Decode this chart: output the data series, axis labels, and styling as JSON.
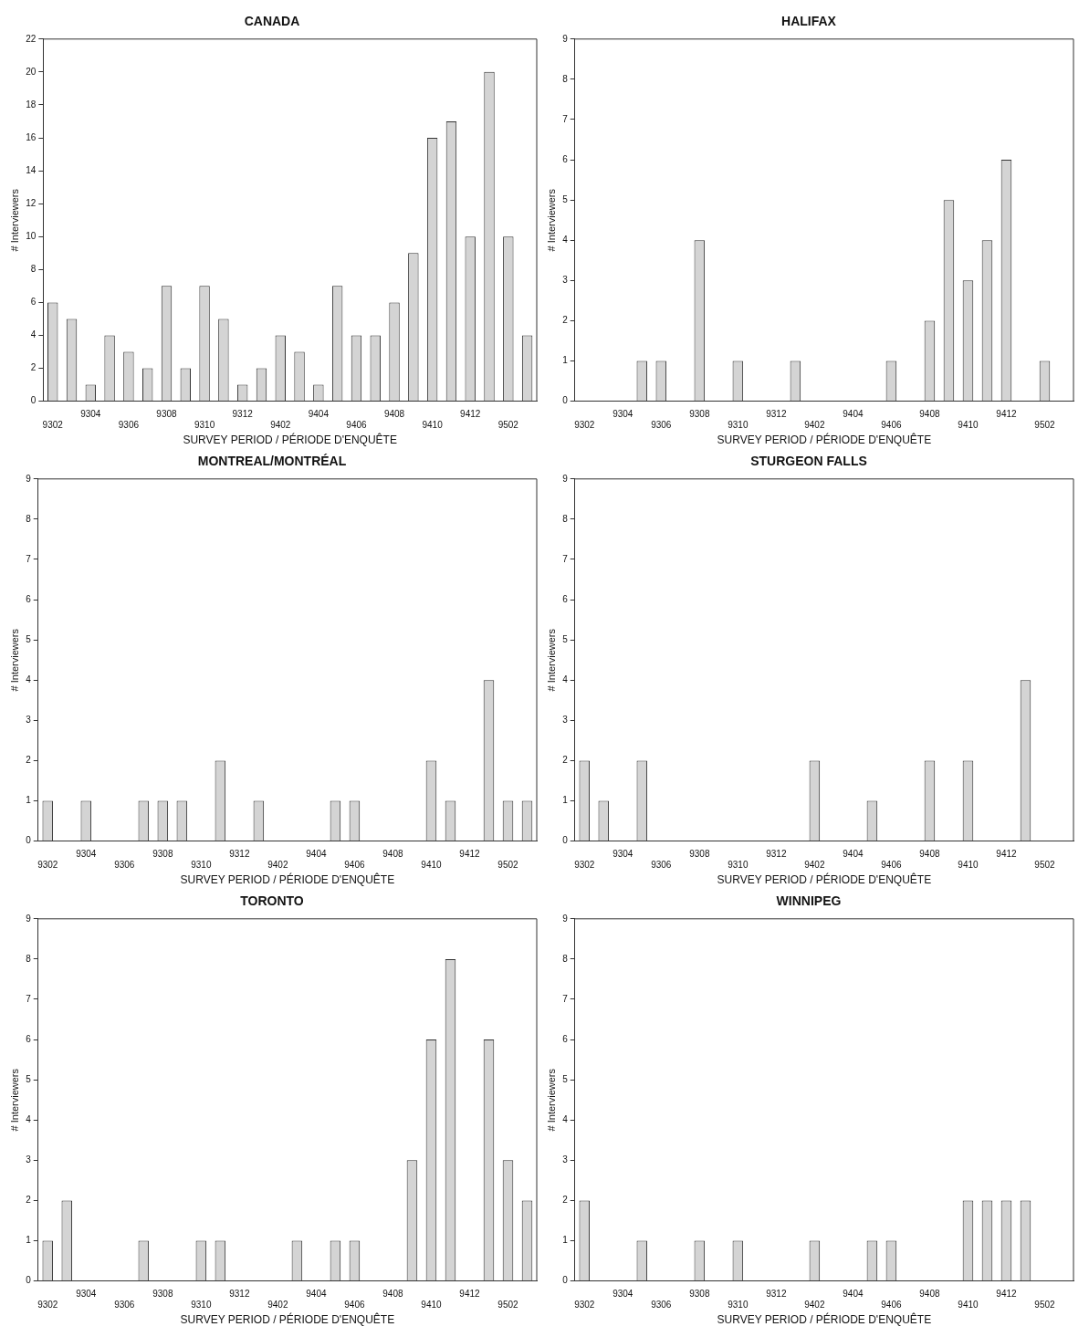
{
  "chart_data": [
    {
      "type": "bar",
      "title": "CANADA",
      "xlabel": "SURVEY PERIOD / PÉRIODE D'ENQUÊTE",
      "ylabel": "# Interviewers",
      "categories": [
        "9302",
        null,
        "9304",
        null,
        "9306",
        null,
        "9308",
        null,
        "9310",
        null,
        "9312",
        null,
        "9402",
        null,
        "9404",
        null,
        "9406",
        null,
        "9408",
        null,
        "9410",
        null,
        "9412",
        null,
        "9502",
        null
      ],
      "values": [
        6,
        5,
        1,
        4,
        3,
        2,
        7,
        2,
        7,
        5,
        1,
        2,
        4,
        3,
        1,
        7,
        4,
        4,
        6,
        9,
        16,
        17,
        10,
        20,
        10,
        4
      ],
      "color": "#d4d4d4",
      "ylim": [
        0,
        22
      ],
      "yticks": [
        0,
        2,
        4,
        6,
        8,
        10,
        12,
        14,
        16,
        18,
        20,
        22
      ]
    },
    {
      "type": "bar",
      "title": "HALIFAX",
      "xlabel": "SURVEY PERIOD / PÉRIODE D'ENQUÊTE",
      "ylabel": "# Interviewers",
      "categories": [
        "9302",
        null,
        "9304",
        null,
        "9306",
        null,
        "9308",
        null,
        "9310",
        null,
        "9312",
        null,
        "9402",
        null,
        "9404",
        null,
        "9406",
        null,
        "9408",
        null,
        "9410",
        null,
        "9412",
        null,
        "9502",
        null
      ],
      "values": [
        0,
        0,
        0,
        1,
        1,
        0,
        4,
        0,
        1,
        0,
        0,
        1,
        0,
        0,
        0,
        0,
        1,
        0,
        2,
        5,
        3,
        4,
        6,
        0,
        1,
        0
      ],
      "color": "#d4d4d4",
      "ylim": [
        0,
        9
      ],
      "yticks": [
        0,
        1,
        2,
        3,
        4,
        5,
        6,
        7,
        8,
        9
      ]
    },
    {
      "type": "bar",
      "title": "MONTREAL/MONTRÉAL",
      "xlabel": "SURVEY PERIOD / PÉRIODE D'ENQUÊTE",
      "ylabel": "# Interviewers",
      "categories": [
        "9302",
        null,
        "9304",
        null,
        "9306",
        null,
        "9308",
        null,
        "9310",
        null,
        "9312",
        null,
        "9402",
        null,
        "9404",
        null,
        "9406",
        null,
        "9408",
        null,
        "9410",
        null,
        "9412",
        null,
        "9502",
        null
      ],
      "values": [
        1,
        0,
        1,
        0,
        0,
        1,
        1,
        1,
        0,
        2,
        0,
        1,
        0,
        0,
        0,
        1,
        1,
        0,
        0,
        0,
        2,
        1,
        0,
        4,
        1,
        1
      ],
      "color": "#d4d4d4",
      "ylim": [
        0,
        9
      ],
      "yticks": [
        0,
        1,
        2,
        3,
        4,
        5,
        6,
        7,
        8,
        9
      ]
    },
    {
      "type": "bar",
      "title": "STURGEON FALLS",
      "xlabel": "SURVEY PERIOD / PÉRIODE D'ENQUÊTE",
      "ylabel": "# Interviewers",
      "categories": [
        "9302",
        null,
        "9304",
        null,
        "9306",
        null,
        "9308",
        null,
        "9310",
        null,
        "9312",
        null,
        "9402",
        null,
        "9404",
        null,
        "9406",
        null,
        "9408",
        null,
        "9410",
        null,
        "9412",
        null,
        "9502",
        null
      ],
      "values": [
        2,
        1,
        0,
        2,
        0,
        0,
        0,
        0,
        0,
        0,
        0,
        0,
        2,
        0,
        0,
        1,
        0,
        0,
        2,
        0,
        2,
        0,
        0,
        4,
        0,
        0
      ],
      "color": "#d4d4d4",
      "ylim": [
        0,
        9
      ],
      "yticks": [
        0,
        1,
        2,
        3,
        4,
        5,
        6,
        7,
        8,
        9
      ]
    },
    {
      "type": "bar",
      "title": "TORONTO",
      "xlabel": "SURVEY PERIOD / PÉRIODE D'ENQUÊTE",
      "ylabel": "# Interviewers",
      "categories": [
        "9302",
        null,
        "9304",
        null,
        "9306",
        null,
        "9308",
        null,
        "9310",
        null,
        "9312",
        null,
        "9402",
        null,
        "9404",
        null,
        "9406",
        null,
        "9408",
        null,
        "9410",
        null,
        "9412",
        null,
        "9502",
        null
      ],
      "values": [
        1,
        2,
        0,
        0,
        0,
        1,
        0,
        0,
        1,
        1,
        0,
        0,
        0,
        1,
        0,
        1,
        1,
        0,
        0,
        3,
        6,
        8,
        0,
        6,
        3,
        2
      ],
      "color": "#d4d4d4",
      "ylim": [
        0,
        9
      ],
      "yticks": [
        0,
        1,
        2,
        3,
        4,
        5,
        6,
        7,
        8,
        9
      ]
    },
    {
      "type": "bar",
      "title": "WINNIPEG",
      "xlabel": "SURVEY PERIOD / PÉRIODE D'ENQUÊTE",
      "ylabel": "# Interviewers",
      "categories": [
        "9302",
        null,
        "9304",
        null,
        "9306",
        null,
        "9308",
        null,
        "9310",
        null,
        "9312",
        null,
        "9402",
        null,
        "9404",
        null,
        "9406",
        null,
        "9408",
        null,
        "9410",
        null,
        "9412",
        null,
        "9502",
        null
      ],
      "values": [
        2,
        0,
        0,
        1,
        0,
        0,
        1,
        0,
        1,
        0,
        0,
        0,
        1,
        0,
        0,
        1,
        1,
        0,
        0,
        0,
        2,
        2,
        2,
        2,
        0,
        0
      ],
      "color": "#d4d4d4",
      "ylim": [
        0,
        9
      ],
      "yticks": [
        0,
        1,
        2,
        3,
        4,
        5,
        6,
        7,
        8,
        9
      ]
    }
  ]
}
